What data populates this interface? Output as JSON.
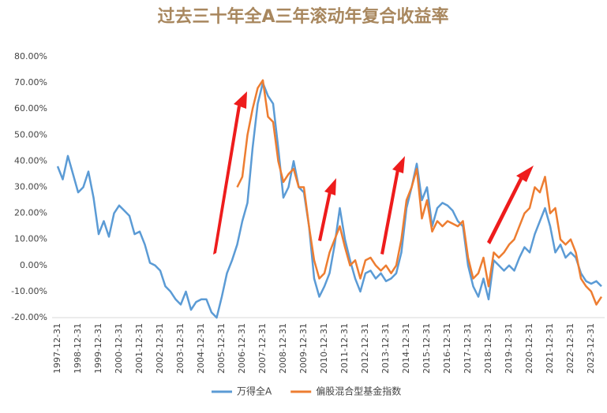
{
  "chart_data": {
    "type": "line",
    "title": "过去三十年全A三年滚动年复合收益率",
    "categories": [
      "1997-12-31",
      null,
      null,
      null,
      "1998-12-31",
      null,
      null,
      null,
      "1999-12-31",
      null,
      null,
      null,
      "2000-12-31",
      null,
      null,
      null,
      "2001-12-31",
      null,
      null,
      null,
      "2002-12-31",
      null,
      null,
      null,
      "2003-12-31",
      null,
      null,
      null,
      "2004-12-31",
      null,
      null,
      null,
      "2005-12-31",
      null,
      null,
      null,
      "2006-12-31",
      null,
      null,
      null,
      "2007-12-31",
      null,
      null,
      null,
      "2008-12-31",
      null,
      null,
      null,
      "2009-12-31",
      null,
      null,
      null,
      "2010-12-31",
      null,
      null,
      null,
      "2011-12-31",
      null,
      null,
      null,
      "2012-12-31",
      null,
      null,
      null,
      "2013-12-31",
      null,
      null,
      null,
      "2014-12-31",
      null,
      null,
      null,
      "2015-12-31",
      null,
      null,
      null,
      "2016-12-31",
      null,
      null,
      null,
      "2017-12-31",
      null,
      null,
      null,
      "2018-12-31",
      null,
      null,
      null,
      "2019-12-31",
      null,
      null,
      null,
      "2020-12-31",
      null,
      null,
      null,
      "2021-12-31",
      null,
      null,
      null,
      "2022-12-31",
      null,
      null,
      null,
      "2023-12-31",
      null,
      null
    ],
    "series": [
      {
        "name": "万得全A",
        "color": "#5b9bd5",
        "values": [
          38,
          33,
          42,
          35,
          28,
          30,
          36,
          26,
          12,
          17,
          11,
          20,
          23,
          21,
          19,
          12,
          13,
          8,
          1,
          0,
          -2,
          -8,
          -10,
          -13,
          -15,
          -10,
          -17,
          -14,
          -13,
          -13,
          -18,
          -20,
          -12,
          -3,
          2,
          8,
          17,
          24,
          45,
          62,
          70,
          65,
          62,
          45,
          26,
          30,
          40,
          30,
          28,
          15,
          -5,
          -12,
          -8,
          -3,
          8,
          22,
          10,
          2,
          -5,
          -10,
          -3,
          -2,
          -5,
          -3,
          -6,
          -5,
          -3,
          5,
          22,
          30,
          39,
          25,
          30,
          15,
          22,
          24,
          23,
          21,
          17,
          15,
          0,
          -8,
          -12,
          -5,
          -13,
          2,
          0,
          -2,
          0,
          -2,
          3,
          7,
          5,
          12,
          17,
          22,
          15,
          5,
          8,
          3,
          5,
          3,
          -3,
          -6,
          -7,
          -6,
          -8
        ]
      },
      {
        "name": "偏股混合型基金指数",
        "color": "#ed7d31",
        "values": [
          null,
          null,
          null,
          null,
          null,
          null,
          null,
          null,
          null,
          null,
          null,
          null,
          null,
          null,
          null,
          null,
          null,
          null,
          null,
          null,
          null,
          null,
          null,
          null,
          null,
          null,
          null,
          null,
          null,
          null,
          null,
          null,
          null,
          null,
          null,
          30,
          34,
          50,
          60,
          68,
          71,
          57,
          55,
          40,
          32,
          35,
          37,
          30,
          30,
          15,
          2,
          -5,
          -3,
          5,
          10,
          15,
          7,
          0,
          2,
          -5,
          2,
          3,
          0,
          -2,
          0,
          -3,
          0,
          10,
          25,
          30,
          37,
          18,
          25,
          13,
          17,
          15,
          17,
          16,
          15,
          17,
          3,
          -5,
          -3,
          3,
          -8,
          5,
          3,
          5,
          8,
          10,
          15,
          20,
          22,
          30,
          28,
          34,
          20,
          22,
          10,
          8,
          10,
          5,
          -5,
          -8,
          -10,
          -15,
          -12
        ]
      }
    ],
    "ylim": [
      -20,
      80
    ],
    "yticks": [
      {
        "value": -20,
        "label": "-20.00%"
      },
      {
        "value": -10,
        "label": "-10.00%"
      },
      {
        "value": 0,
        "label": "0.00%"
      },
      {
        "value": 10,
        "label": "10.00%"
      },
      {
        "value": 20,
        "label": "20.00%"
      },
      {
        "value": 30,
        "label": "30.00%"
      },
      {
        "value": 40,
        "label": "40.00%"
      },
      {
        "value": 50,
        "label": "50.00%"
      },
      {
        "value": 60,
        "label": "60.00%"
      },
      {
        "value": 70,
        "label": "70.00%"
      },
      {
        "value": 80,
        "label": "80.00%"
      }
    ],
    "grid": false,
    "legend": "bottom"
  }
}
